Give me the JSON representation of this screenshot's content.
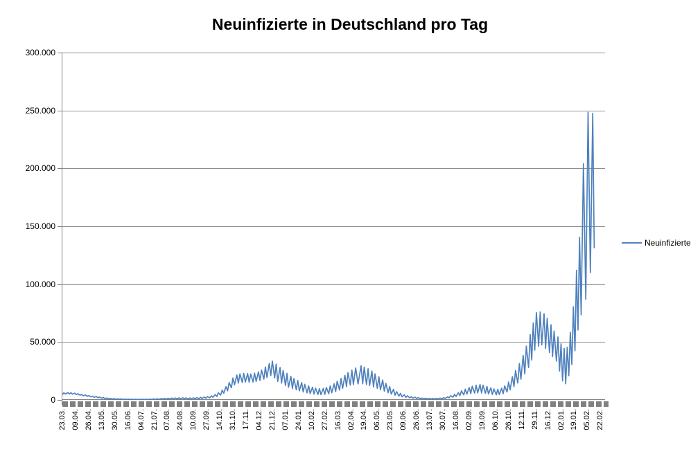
{
  "title": "Neuinfizierte in Deutschland pro Tag",
  "legend": {
    "label": "Neuinfizierte"
  },
  "colors": {
    "series_line": "#4f81bd",
    "gridline": "#8e8e8e",
    "axis": "#808080",
    "tick_band": "#808080",
    "text": "#000000",
    "background": "#ffffff"
  },
  "chart_data": {
    "type": "line",
    "title": "Neuinfizierte in Deutschland pro Tag",
    "series_name": "Neuinfizierte",
    "xlabel": "",
    "ylabel": "",
    "grid": true,
    "legend_position": "right",
    "ylim": [
      0,
      300000
    ],
    "y_ticks": [
      0,
      50000,
      100000,
      150000,
      200000,
      250000,
      300000
    ],
    "y_tick_labels": [
      "0",
      "50.000",
      "100.000",
      "150.000",
      "200.000",
      "250.000",
      "300.000"
    ],
    "x_domain": [
      0,
      703
    ],
    "x_tick_step": 17,
    "x_tick_labels": [
      "23.03.",
      "09.04.",
      "26.04.",
      "13.05.",
      "30.05.",
      "16.06.",
      "04.07.",
      "21.07.",
      "07.08.",
      "24.08.",
      "10.09.",
      "27.09.",
      "14.10.",
      "31.10.",
      "17.11.",
      "04.12.",
      "21.12.",
      "07.01.",
      "24.01.",
      "10.02.",
      "27.02.",
      "16.03.",
      "02.04.",
      "19.04.",
      "06.05.",
      "23.05.",
      "09.06.",
      "26.06.",
      "13.07.",
      "30.07.",
      "16.08.",
      "02.09.",
      "19.09.",
      "06.10.",
      "26.10.",
      "12.11.",
      "29.11.",
      "16.12.",
      "02.01.",
      "19.01.",
      "05.02.",
      "22.02."
    ],
    "points": [
      [
        0,
        4800
      ],
      [
        2,
        6200
      ],
      [
        4,
        5100
      ],
      [
        7,
        6400
      ],
      [
        9,
        5200
      ],
      [
        11,
        6300
      ],
      [
        13,
        5000
      ],
      [
        16,
        5900
      ],
      [
        18,
        4600
      ],
      [
        20,
        5400
      ],
      [
        23,
        4100
      ],
      [
        25,
        4800
      ],
      [
        27,
        3600
      ],
      [
        30,
        4300
      ],
      [
        32,
        3100
      ],
      [
        34,
        3800
      ],
      [
        37,
        2700
      ],
      [
        39,
        3300
      ],
      [
        41,
        2300
      ],
      [
        44,
        2900
      ],
      [
        46,
        1900
      ],
      [
        48,
        2500
      ],
      [
        51,
        1500
      ],
      [
        53,
        2100
      ],
      [
        55,
        1200
      ],
      [
        58,
        1700
      ],
      [
        60,
        950
      ],
      [
        62,
        1400
      ],
      [
        65,
        800
      ],
      [
        67,
        1200
      ],
      [
        69,
        650
      ],
      [
        72,
        1000
      ],
      [
        74,
        550
      ],
      [
        76,
        900
      ],
      [
        79,
        450
      ],
      [
        81,
        800
      ],
      [
        83,
        400
      ],
      [
        86,
        750
      ],
      [
        88,
        350
      ],
      [
        90,
        700
      ],
      [
        93,
        320
      ],
      [
        95,
        650
      ],
      [
        97,
        300
      ],
      [
        100,
        600
      ],
      [
        102,
        300
      ],
      [
        104,
        620
      ],
      [
        107,
        330
      ],
      [
        109,
        700
      ],
      [
        111,
        380
      ],
      [
        114,
        800
      ],
      [
        116,
        420
      ],
      [
        118,
        900
      ],
      [
        121,
        480
      ],
      [
        123,
        1050
      ],
      [
        125,
        560
      ],
      [
        128,
        1200
      ],
      [
        130,
        640
      ],
      [
        132,
        1350
      ],
      [
        135,
        720
      ],
      [
        137,
        1500
      ],
      [
        139,
        800
      ],
      [
        142,
        1650
      ],
      [
        144,
        850
      ],
      [
        146,
        1750
      ],
      [
        149,
        900
      ],
      [
        151,
        1800
      ],
      [
        153,
        950
      ],
      [
        156,
        1850
      ],
      [
        158,
        950
      ],
      [
        160,
        1800
      ],
      [
        163,
        900
      ],
      [
        165,
        1750
      ],
      [
        167,
        880
      ],
      [
        170,
        1800
      ],
      [
        172,
        950
      ],
      [
        174,
        1950
      ],
      [
        177,
        1100
      ],
      [
        179,
        2200
      ],
      [
        181,
        1250
      ],
      [
        184,
        2500
      ],
      [
        186,
        1450
      ],
      [
        188,
        2900
      ],
      [
        191,
        1800
      ],
      [
        193,
        3600
      ],
      [
        195,
        2300
      ],
      [
        198,
        4600
      ],
      [
        200,
        3000
      ],
      [
        202,
        6200
      ],
      [
        205,
        4200
      ],
      [
        207,
        8500
      ],
      [
        209,
        5800
      ],
      [
        212,
        11500
      ],
      [
        214,
        7800
      ],
      [
        216,
        15000
      ],
      [
        219,
        10500
      ],
      [
        221,
        19000
      ],
      [
        223,
        13000
      ],
      [
        226,
        21500
      ],
      [
        228,
        14500
      ],
      [
        230,
        22500
      ],
      [
        233,
        15200
      ],
      [
        235,
        23000
      ],
      [
        237,
        15500
      ],
      [
        240,
        22800
      ],
      [
        242,
        15300
      ],
      [
        244,
        22500
      ],
      [
        247,
        15500
      ],
      [
        249,
        23200
      ],
      [
        251,
        16000
      ],
      [
        254,
        24200
      ],
      [
        256,
        16800
      ],
      [
        258,
        25800
      ],
      [
        261,
        18000
      ],
      [
        263,
        28500
      ],
      [
        265,
        19500
      ],
      [
        268,
        31500
      ],
      [
        270,
        21000
      ],
      [
        272,
        33500
      ],
      [
        275,
        19000
      ],
      [
        277,
        31000
      ],
      [
        279,
        16000
      ],
      [
        282,
        28000
      ],
      [
        284,
        14500
      ],
      [
        286,
        25500
      ],
      [
        289,
        12500
      ],
      [
        291,
        23000
      ],
      [
        293,
        11000
      ],
      [
        296,
        20500
      ],
      [
        298,
        9800
      ],
      [
        300,
        18500
      ],
      [
        303,
        8800
      ],
      [
        305,
        16800
      ],
      [
        307,
        7800
      ],
      [
        310,
        15000
      ],
      [
        312,
        6900
      ],
      [
        314,
        13500
      ],
      [
        317,
        6100
      ],
      [
        319,
        12200
      ],
      [
        321,
        5500
      ],
      [
        324,
        11000
      ],
      [
        326,
        5000
      ],
      [
        328,
        10200
      ],
      [
        331,
        4700
      ],
      [
        333,
        9800
      ],
      [
        335,
        4600
      ],
      [
        338,
        10000
      ],
      [
        340,
        4800
      ],
      [
        342,
        10800
      ],
      [
        345,
        5400
      ],
      [
        347,
        12200
      ],
      [
        349,
        6200
      ],
      [
        352,
        14000
      ],
      [
        354,
        7200
      ],
      [
        356,
        16200
      ],
      [
        359,
        8600
      ],
      [
        361,
        18600
      ],
      [
        363,
        10000
      ],
      [
        366,
        21200
      ],
      [
        368,
        11600
      ],
      [
        370,
        23600
      ],
      [
        373,
        12800
      ],
      [
        375,
        25800
      ],
      [
        377,
        13400
      ],
      [
        380,
        27600
      ],
      [
        383,
        13800
      ],
      [
        387,
        29500
      ],
      [
        389,
        13900
      ],
      [
        391,
        28400
      ],
      [
        394,
        13300
      ],
      [
        396,
        27000
      ],
      [
        398,
        12400
      ],
      [
        401,
        25000
      ],
      [
        403,
        11200
      ],
      [
        405,
        22600
      ],
      [
        408,
        10000
      ],
      [
        410,
        20000
      ],
      [
        412,
        8800
      ],
      [
        415,
        17200
      ],
      [
        417,
        7600
      ],
      [
        419,
        14400
      ],
      [
        422,
        6300
      ],
      [
        424,
        11600
      ],
      [
        426,
        5100
      ],
      [
        429,
        9200
      ],
      [
        431,
        4100
      ],
      [
        433,
        7200
      ],
      [
        436,
        3300
      ],
      [
        438,
        5700
      ],
      [
        440,
        2700
      ],
      [
        443,
        4500
      ],
      [
        445,
        2200
      ],
      [
        447,
        3600
      ],
      [
        450,
        1800
      ],
      [
        452,
        2900
      ],
      [
        454,
        1500
      ],
      [
        457,
        2400
      ],
      [
        459,
        1250
      ],
      [
        461,
        2000
      ],
      [
        464,
        1050
      ],
      [
        466,
        1700
      ],
      [
        468,
        900
      ],
      [
        471,
        1500
      ],
      [
        473,
        800
      ],
      [
        475,
        1350
      ],
      [
        478,
        750
      ],
      [
        480,
        1300
      ],
      [
        482,
        780
      ],
      [
        485,
        1400
      ],
      [
        487,
        850
      ],
      [
        489,
        1600
      ],
      [
        492,
        1000
      ],
      [
        494,
        2000
      ],
      [
        496,
        1300
      ],
      [
        499,
        2700
      ],
      [
        501,
        1800
      ],
      [
        503,
        3700
      ],
      [
        506,
        2400
      ],
      [
        508,
        4900
      ],
      [
        510,
        3000
      ],
      [
        513,
        6300
      ],
      [
        515,
        3700
      ],
      [
        517,
        7800
      ],
      [
        520,
        4400
      ],
      [
        522,
        9300
      ],
      [
        524,
        5000
      ],
      [
        527,
        10700
      ],
      [
        529,
        5500
      ],
      [
        531,
        11900
      ],
      [
        534,
        5900
      ],
      [
        536,
        12800
      ],
      [
        538,
        6100
      ],
      [
        541,
        13300
      ],
      [
        543,
        6100
      ],
      [
        545,
        12700
      ],
      [
        548,
        5700
      ],
      [
        550,
        11700
      ],
      [
        552,
        5200
      ],
      [
        555,
        10500
      ],
      [
        557,
        4700
      ],
      [
        559,
        9500
      ],
      [
        562,
        4400
      ],
      [
        564,
        9200
      ],
      [
        566,
        4600
      ],
      [
        569,
        10200
      ],
      [
        571,
        5400
      ],
      [
        573,
        12200
      ],
      [
        576,
        6800
      ],
      [
        578,
        15500
      ],
      [
        580,
        8800
      ],
      [
        583,
        20000
      ],
      [
        585,
        11500
      ],
      [
        587,
        25500
      ],
      [
        590,
        14500
      ],
      [
        592,
        31500
      ],
      [
        594,
        18000
      ],
      [
        597,
        38500
      ],
      [
        599,
        22500
      ],
      [
        601,
        46500
      ],
      [
        604,
        28000
      ],
      [
        606,
        56500
      ],
      [
        608,
        34500
      ],
      [
        610,
        66500
      ],
      [
        612,
        43000
      ],
      [
        614,
        75500
      ],
      [
        617,
        46500
      ],
      [
        619,
        76000
      ],
      [
        621,
        47500
      ],
      [
        624,
        74500
      ],
      [
        626,
        44500
      ],
      [
        628,
        70500
      ],
      [
        631,
        41000
      ],
      [
        633,
        65000
      ],
      [
        635,
        37500
      ],
      [
        637,
        59500
      ],
      [
        640,
        33500
      ],
      [
        642,
        54500
      ],
      [
        644,
        25000
      ],
      [
        646,
        48500
      ],
      [
        648,
        16500
      ],
      [
        650,
        44500
      ],
      [
        652,
        14000
      ],
      [
        654,
        45500
      ],
      [
        656,
        21000
      ],
      [
        658,
        58500
      ],
      [
        660,
        30500
      ],
      [
        662,
        80500
      ],
      [
        664,
        42500
      ],
      [
        666,
        112000
      ],
      [
        668,
        60500
      ],
      [
        670,
        140500
      ],
      [
        672,
        73500
      ],
      [
        675,
        204000
      ],
      [
        678,
        87000
      ],
      [
        681,
        248500
      ],
      [
        684,
        110000
      ],
      [
        687,
        247500
      ],
      [
        689,
        131000
      ]
    ]
  }
}
